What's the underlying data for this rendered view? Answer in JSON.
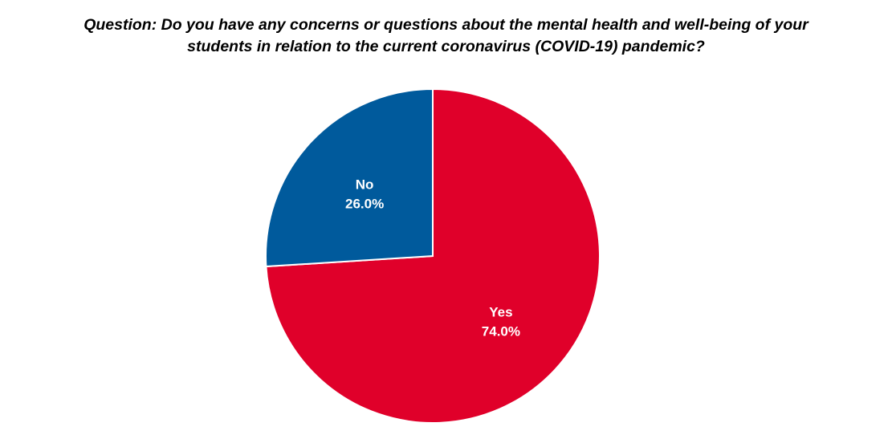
{
  "chart_data": {
    "type": "pie",
    "title_lines": [
      "Question: Do you have any concerns or questions about the mental health and well-being of your",
      "students in relation to the current coronavirus (COVID-19) pandemic?"
    ],
    "slices": [
      {
        "label": "Yes",
        "value": 74.0,
        "value_label": "74.0%",
        "color": "#E0002A"
      },
      {
        "label": "No",
        "value": 26.0,
        "value_label": "26.0%",
        "color": "#005A9C"
      }
    ],
    "start_angle_deg": 0,
    "direction": "clockwise",
    "legend": "none",
    "slice_border_color": "#ffffff"
  }
}
